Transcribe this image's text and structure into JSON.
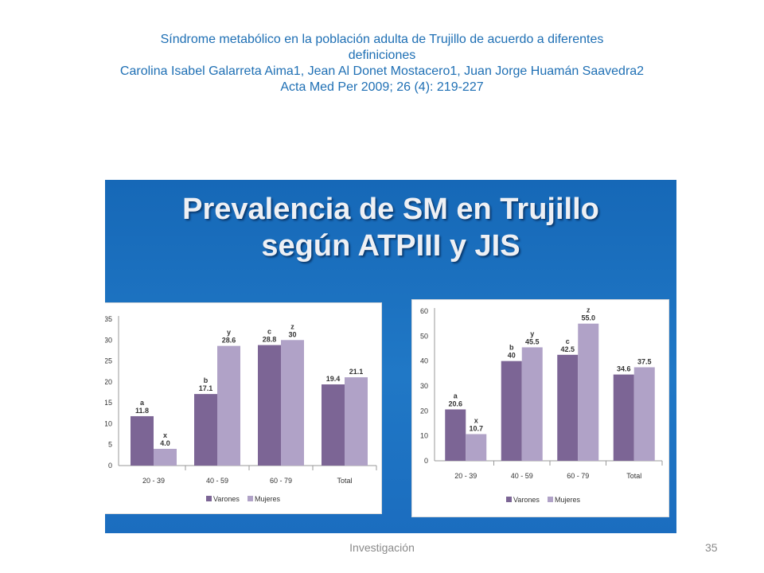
{
  "slide": {
    "title_line1": "Síndrome metabólico en la población adulta de Trujillo de acuerdo a diferentes",
    "title_line2": "definiciones",
    "authors": "Carolina Isabel Galarreta Aima1, Jean Al Donet Mostacero1, Juan Jorge Huamán Saavedra2",
    "citation": "Acta Med Per 2009; 26 (4): 219-227",
    "panel_heading_line1": "Prevalencia de SM en Trujillo",
    "panel_heading_line2": "según ATPIII y JIS",
    "footer_label": "Investigación",
    "page_number": "35"
  },
  "colors": {
    "title_text": "#1e6fb4",
    "panel_background": "#1a6fbe",
    "varones": "#7c6595",
    "mujeres": "#b0a2c7"
  },
  "chart_data": [
    {
      "type": "bar",
      "title": "",
      "xlabel": "",
      "ylabel": "",
      "ylim": [
        0,
        35
      ],
      "yticks": [
        0,
        5,
        10,
        15,
        20,
        25,
        30,
        35
      ],
      "grid": false,
      "legend_position": "bottom",
      "categories": [
        "20 - 39",
        "40 - 59",
        "60 - 79",
        "Total"
      ],
      "series": [
        {
          "name": "Varones",
          "values": [
            11.8,
            17.1,
            28.8,
            19.4
          ],
          "labels": [
            "11.8",
            "17.1",
            "28.8",
            "19.4"
          ],
          "letters": [
            "a",
            "b",
            "c",
            ""
          ]
        },
        {
          "name": "Mujeres",
          "values": [
            4.0,
            28.6,
            30.0,
            21.1
          ],
          "labels": [
            "4.0",
            "28.6",
            "30",
            "21.1"
          ],
          "letters": [
            "x",
            "y",
            "z",
            ""
          ]
        }
      ]
    },
    {
      "type": "bar",
      "title": "",
      "xlabel": "",
      "ylabel": "",
      "ylim": [
        0,
        60
      ],
      "yticks": [
        0,
        10,
        20,
        30,
        40,
        50,
        60
      ],
      "grid": false,
      "legend_position": "bottom",
      "categories": [
        "20 - 39",
        "40 - 59",
        "60 - 79",
        "Total"
      ],
      "series": [
        {
          "name": "Varones",
          "values": [
            20.6,
            40.0,
            42.5,
            34.6
          ],
          "labels": [
            "20.6",
            "40",
            "42.5",
            "34.6"
          ],
          "letters": [
            "a",
            "b",
            "c",
            ""
          ]
        },
        {
          "name": "Mujeres",
          "values": [
            10.7,
            45.5,
            55.0,
            37.5
          ],
          "labels": [
            "10.7",
            "45.5",
            "55.0",
            "37.5"
          ],
          "letters": [
            "x",
            "y",
            "z",
            ""
          ]
        }
      ]
    }
  ]
}
